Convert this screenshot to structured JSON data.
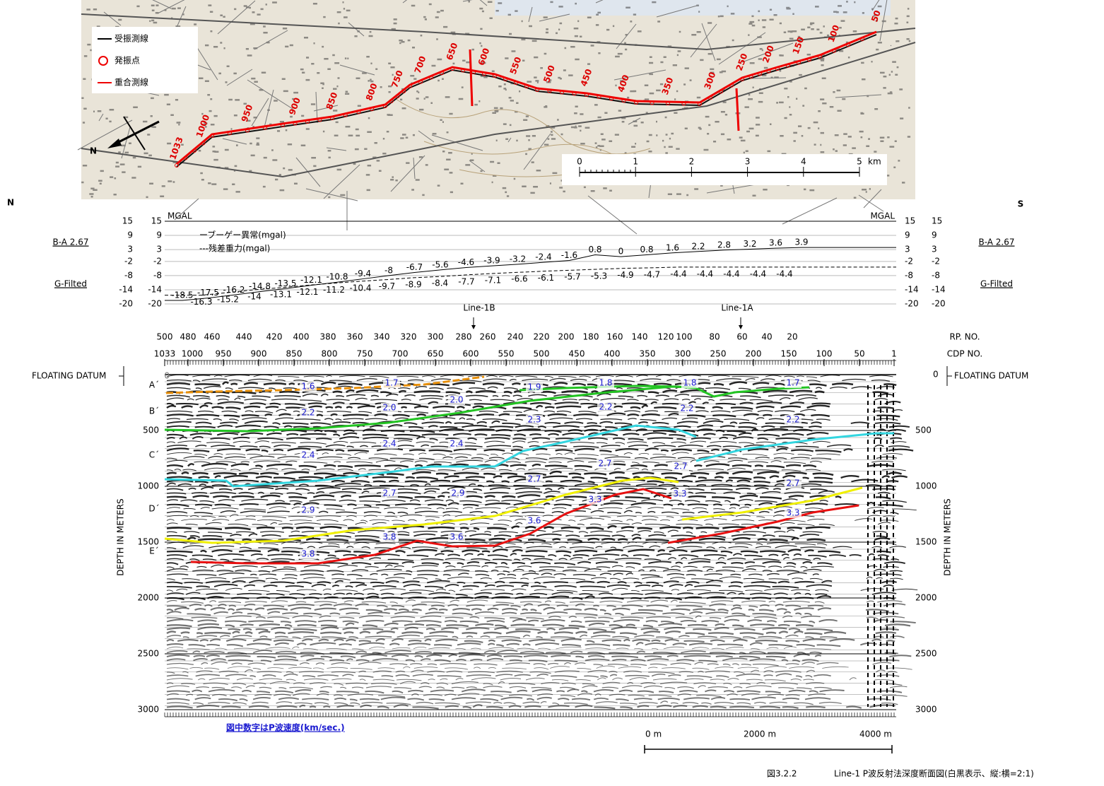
{
  "map": {
    "legend": [
      "受振測線",
      "発振点",
      "重合測線"
    ],
    "north": "N",
    "scale_ticks": [
      0,
      1,
      2,
      3,
      4,
      5
    ],
    "scale_unit": "km",
    "route_labels": [
      "1033",
      "1000",
      "950",
      "900",
      "850",
      "800",
      "750",
      "700",
      "650",
      "600",
      "550",
      "500",
      "450",
      "400",
      "350",
      "300",
      "250",
      "200",
      "150",
      "100",
      "50"
    ]
  },
  "directions": [
    "N",
    "S"
  ],
  "gravity": {
    "unit": "MGAL",
    "side_labels": [
      "B-A 2.67",
      "G-Filted"
    ],
    "legend": [
      "ーブーゲー異常(mgal)",
      "---残差重力(mgal)"
    ],
    "ylim": [
      -20,
      15
    ],
    "yticks": [
      15,
      9,
      3,
      -2,
      -8,
      -14,
      -20
    ],
    "bouguer": [
      -18.5,
      -17.5,
      -16.2,
      -14.8,
      -13.5,
      -12.1,
      -10.8,
      -9.4,
      -8.0,
      -6.7,
      -5.6,
      -4.6,
      -3.9,
      -3.2,
      -2.4,
      -1.6,
      0.8,
      0.0,
      0.8,
      1.6,
      2.2,
      2.8,
      3.2,
      3.6,
      3.9
    ],
    "residual": [
      -16.3,
      -15.2,
      -14.0,
      -13.1,
      -12.1,
      -11.2,
      -10.4,
      -9.7,
      -8.9,
      -8.4,
      -7.7,
      -7.1,
      -6.6,
      -6.1,
      -5.7,
      -5.3,
      -4.9,
      -4.7,
      -4.4,
      -4.4,
      -4.4,
      -4.4,
      -4.4
    ]
  },
  "lines": [
    "Line-1B",
    "Line-1A"
  ],
  "rp": {
    "title": "RP. NO.",
    "ticks": [
      500,
      480,
      460,
      440,
      420,
      400,
      380,
      360,
      340,
      320,
      300,
      280,
      260,
      240,
      220,
      200,
      180,
      160,
      140,
      120,
      100,
      80,
      60,
      40,
      20
    ]
  },
  "cdp": {
    "title": "CDP NO.",
    "ticks": [
      1033,
      1000,
      950,
      900,
      850,
      800,
      750,
      700,
      650,
      600,
      550,
      500,
      450,
      400,
      350,
      300,
      250,
      200,
      150,
      100,
      50,
      1
    ]
  },
  "datum": "FLOATING DATUM",
  "depth": {
    "title": "DEPTH IN METERS",
    "ylim": [
      0,
      3000
    ],
    "ticks": [
      0,
      500,
      1000,
      1500,
      2000,
      2500,
      3000
    ]
  },
  "horizons": [
    "A´",
    "B´",
    "C´",
    "D´",
    "E´"
  ],
  "velocities": [
    "1.6",
    "1.7",
    "1.9",
    "1.8",
    "1.8",
    "1.7",
    "2.2",
    "2.0",
    "2.0",
    "2.2",
    "2.2",
    "2.3",
    "2.2",
    "2.4",
    "2.4",
    "2.4",
    "2.7",
    "2.7",
    "2.7",
    "2.7",
    "2.7",
    "2.9",
    "3.3",
    "3.3",
    "2.9",
    "3.6",
    "3.3",
    "3.8",
    "3.6",
    "3.8"
  ],
  "note": "図中数字はP波速度(km/sec.)",
  "distance_scale": [
    "0 m",
    "2000 m",
    "4000 m"
  ],
  "caption": {
    "figure": "図3.2.2",
    "title": "Line-1 P波反射法深度断面図(白黒表示、縦:横=2:1)"
  }
}
